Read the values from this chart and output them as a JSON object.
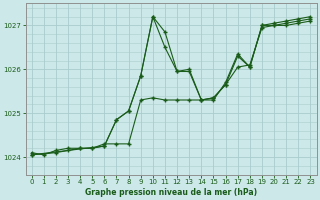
{
  "background_color": "#cce8e8",
  "grid_color": "#aacccc",
  "line_color": "#1a5c1a",
  "title": "Graphe pression niveau de la mer (hPa)",
  "xlim": [
    -0.5,
    23.5
  ],
  "ylim": [
    1023.6,
    1027.5
  ],
  "yticks": [
    1024,
    1025,
    1026,
    1027
  ],
  "xticks": [
    0,
    1,
    2,
    3,
    4,
    5,
    6,
    7,
    8,
    9,
    10,
    11,
    12,
    13,
    14,
    15,
    16,
    17,
    18,
    19,
    20,
    21,
    22,
    23
  ],
  "line1": {
    "x": [
      0,
      1,
      2,
      3,
      4,
      5,
      6,
      7,
      8,
      9,
      10,
      11,
      12,
      13,
      14,
      15,
      16,
      17,
      18,
      19,
      20,
      21,
      22,
      23
    ],
    "y": [
      1024.1,
      1024.05,
      1024.15,
      1024.2,
      1024.2,
      1024.2,
      1024.25,
      1024.85,
      1025.05,
      1025.85,
      1027.2,
      1026.5,
      1025.95,
      1026.0,
      1025.3,
      1025.3,
      1025.7,
      1026.35,
      1026.05,
      1027.0,
      1027.05,
      1027.1,
      1027.15,
      1027.2
    ]
  },
  "line2": {
    "x": [
      0,
      2,
      3,
      4,
      5,
      6,
      7,
      8,
      9,
      10,
      11,
      12,
      13,
      14,
      15,
      16,
      17,
      18,
      19,
      20,
      21,
      22,
      23
    ],
    "y": [
      1024.05,
      1024.1,
      1024.15,
      1024.2,
      1024.2,
      1024.3,
      1024.3,
      1024.3,
      1025.3,
      1025.35,
      1025.3,
      1025.3,
      1025.3,
      1025.3,
      1025.35,
      1025.65,
      1026.05,
      1026.1,
      1026.95,
      1027.0,
      1027.0,
      1027.05,
      1027.1
    ]
  },
  "line3": {
    "x": [
      0,
      6,
      7,
      8,
      9,
      10,
      11,
      12,
      13,
      14,
      15,
      16,
      17,
      18,
      19,
      20,
      21,
      22,
      23
    ],
    "y": [
      1024.05,
      1024.25,
      1024.85,
      1025.05,
      1025.85,
      1027.2,
      1026.85,
      1025.95,
      1025.95,
      1025.3,
      1025.35,
      1025.65,
      1026.3,
      1026.05,
      1027.0,
      1027.0,
      1027.05,
      1027.1,
      1027.15
    ]
  }
}
